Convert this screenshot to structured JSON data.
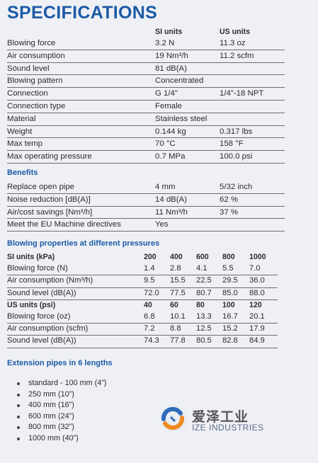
{
  "title": "SPECIFICATIONS",
  "specs": {
    "col_si": "SI units",
    "col_us": "US units",
    "rows": [
      {
        "label": "Blowing force",
        "si": "3.2 N",
        "us": "11.3 oz"
      },
      {
        "label": "Air consumption",
        "si": "19 Nm³/h",
        "us": "11.2 scfm"
      },
      {
        "label": "Sound level",
        "si": "81 dB(A)",
        "us": ""
      },
      {
        "label": "Blowing pattern",
        "si": "Concentrated",
        "us": ""
      },
      {
        "label": "Connection",
        "si": "G 1/4\"",
        "us": "1/4\"-18 NPT"
      },
      {
        "label": "Connection type",
        "si": "Female",
        "us": ""
      },
      {
        "label": "Material",
        "si": "Stainless steel",
        "us": ""
      },
      {
        "label": "Weight",
        "si": "0.144 kg",
        "us": "0.317 lbs"
      },
      {
        "label": "Max temp",
        "si": "70 °C",
        "us": "158 °F"
      },
      {
        "label": "Max operating pressure",
        "si": "0.7 MPa",
        "us": "100.0 psi"
      }
    ]
  },
  "benefits": {
    "title": "Benefits",
    "rows": [
      {
        "label": "Replace open pipe",
        "a": "4 mm",
        "b": "5/32 inch"
      },
      {
        "label": "Noise reduction [dB(A)]",
        "a": "14 dB(A)",
        "b": "62 %"
      },
      {
        "label": "Air/cost savings [Nm³/h]",
        "a": "11 Nm³/h",
        "b": "37 %"
      },
      {
        "label": "Meet the EU Machine directives",
        "a": "Yes",
        "b": ""
      }
    ]
  },
  "blowing": {
    "title": "Blowing properties at different pressures",
    "si_header": {
      "label": "SI units (kPa)",
      "values": [
        "200",
        "400",
        "600",
        "800",
        "1000"
      ]
    },
    "si_rows": [
      {
        "label": "Blowing force (N)",
        "values": [
          "1.4",
          "2.8",
          "4.1",
          "5.5",
          "7.0"
        ]
      },
      {
        "label": "Air consumption (Nm³/h)",
        "values": [
          "9.5",
          "15.5",
          "22.5",
          "29.5",
          "36.0"
        ]
      },
      {
        "label": "Sound level (dB(A))",
        "values": [
          "72.0",
          "77.5",
          "80.7",
          "85.0",
          "88.0"
        ]
      }
    ],
    "us_header": {
      "label": "US units (psi)",
      "values": [
        "40",
        "60",
        "80",
        "100",
        "120"
      ]
    },
    "us_rows": [
      {
        "label": "Blowing force (oz)",
        "values": [
          "6.8",
          "10.1",
          "13.3",
          "16.7",
          "20.1"
        ]
      },
      {
        "label": "Air consumption (scfm)",
        "values": [
          "7.2",
          "8.8",
          "12.5",
          "15.2",
          "17.9"
        ]
      },
      {
        "label": "Sound level (dB(A))",
        "values": [
          "74.3",
          "77.8",
          "80.5",
          "82.8",
          "84.9"
        ]
      }
    ]
  },
  "extension": {
    "title": "Extension pipes in 6 lengths",
    "items": [
      "standard - 100 mm (4”)",
      "250 mm (10”)",
      "400 mm (16”)",
      "600 mm (24”)",
      "800 mm (32”)",
      "1000 mm (40”)"
    ]
  },
  "logo": {
    "name_cn": "爱泽工业",
    "name_en": "IZE INDUSTRIES",
    "icon": "ize-logo-icon",
    "colors": {
      "blue": "#2f6ab8",
      "orange": "#f08a1e"
    }
  }
}
